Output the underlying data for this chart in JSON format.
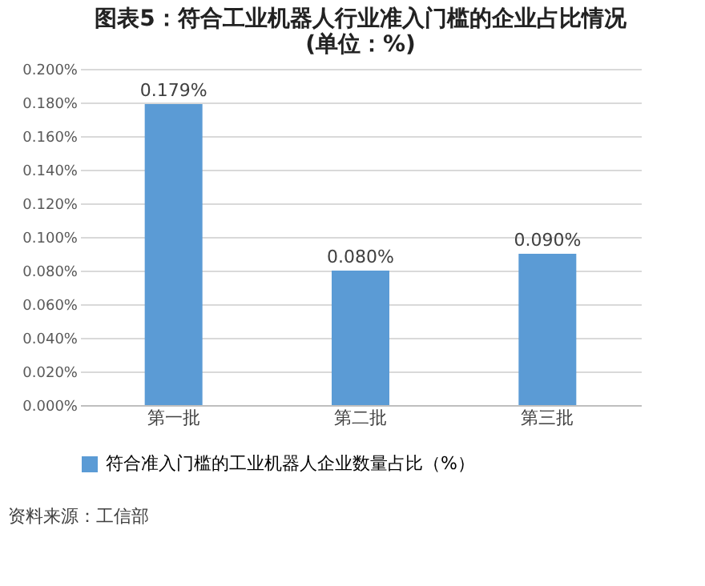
{
  "chart_data": {
    "type": "bar",
    "title": "图表5：符合工业机器人行业准入门槛的企业占比情况(单位：%)",
    "categories": [
      "第一批",
      "第二批",
      "第三批"
    ],
    "series": [
      {
        "name": "符合准入门槛的工业机器人企业数量占比（%）",
        "color": "#5b9bd5",
        "values": [
          0.179,
          0.08,
          0.09
        ],
        "value_labels": [
          "0.179%",
          "0.080%",
          "0.090%"
        ]
      }
    ],
    "ylim": [
      0,
      0.2
    ],
    "yticks": [
      {
        "value": 0,
        "label": "0.000%"
      },
      {
        "value": 0.02,
        "label": "0.020%"
      },
      {
        "value": 0.04,
        "label": "0.040%"
      },
      {
        "value": 0.06,
        "label": "0.060%"
      },
      {
        "value": 0.08,
        "label": "0.080%"
      },
      {
        "value": 0.1,
        "label": "0.100%"
      },
      {
        "value": 0.12,
        "label": "0.120%"
      },
      {
        "value": 0.14,
        "label": "0.140%"
      },
      {
        "value": 0.16,
        "label": "0.160%"
      },
      {
        "value": 0.18,
        "label": "0.180%"
      },
      {
        "value": 0.2,
        "label": "0.200%"
      }
    ],
    "grid": "y",
    "legend": "bottom",
    "annotations": [
      "资料来源：工信部"
    ]
  }
}
